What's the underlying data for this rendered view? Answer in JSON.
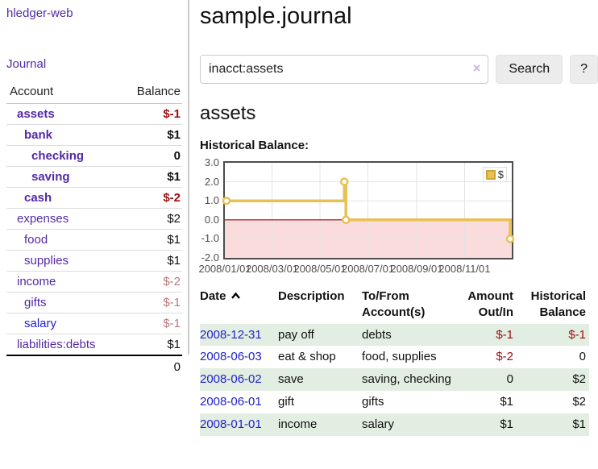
{
  "app": {
    "title": "hledger-web"
  },
  "colors": {
    "link_purple": "#5329a5",
    "link_blue": "#2222cc",
    "negative_strong": "#9e0e0e",
    "negative_soft": "#b97878",
    "row_stripe_green": "#e2eee2",
    "chart_gold": "#e8c155",
    "chart_negative_region": "#fbdcdc",
    "chart_zero_line": "#a40000"
  },
  "sidebar": {
    "journal_label": "Journal",
    "table": {
      "account_header": "Account",
      "balance_header": "Balance",
      "rows": [
        {
          "name": "assets",
          "indent": 1,
          "bold": true,
          "link_color": "purple",
          "balance": "$-1",
          "balance_style": "neg-strong"
        },
        {
          "name": "bank",
          "indent": 2,
          "bold": true,
          "link_color": "purple",
          "balance": "$1",
          "balance_style": "pos"
        },
        {
          "name": "checking",
          "indent": 3,
          "bold": true,
          "link_color": "purple",
          "balance": "0",
          "balance_style": "pos"
        },
        {
          "name": "saving",
          "indent": 3,
          "bold": true,
          "link_color": "purple",
          "balance": "$1",
          "balance_style": "pos"
        },
        {
          "name": "cash",
          "indent": 2,
          "bold": true,
          "link_color": "purple",
          "balance": "$-2",
          "balance_style": "neg-strong"
        },
        {
          "name": "expenses",
          "indent": 1,
          "bold": false,
          "link_color": "purple",
          "balance": "$2",
          "balance_style": "pos"
        },
        {
          "name": "food",
          "indent": 2,
          "bold": false,
          "link_color": "purple",
          "balance": "$1",
          "balance_style": "pos"
        },
        {
          "name": "supplies",
          "indent": 2,
          "bold": false,
          "link_color": "purple",
          "balance": "$1",
          "balance_style": "pos"
        },
        {
          "name": "income",
          "indent": 1,
          "bold": false,
          "link_color": "purple",
          "balance": "$-2",
          "balance_style": "neg-soft"
        },
        {
          "name": "gifts",
          "indent": 2,
          "bold": false,
          "link_color": "purple",
          "balance": "$-1",
          "balance_style": "neg-soft"
        },
        {
          "name": "salary",
          "indent": 2,
          "bold": false,
          "link_color": "blue",
          "balance": "$-1",
          "balance_style": "neg-soft"
        },
        {
          "name": "liabilities:debts",
          "indent": 1,
          "bold": false,
          "link_color": "purple",
          "balance": "$1",
          "balance_style": "pos"
        }
      ],
      "total": "0"
    }
  },
  "main": {
    "title": "sample.journal",
    "search": {
      "value": "inacct:assets",
      "clear_icon": "×",
      "button_label": "Search",
      "help_label": "?"
    },
    "account_heading": "assets",
    "chart_label": "Historical Balance:"
  },
  "chart_data": {
    "type": "line",
    "step": true,
    "title": "Historical Balance",
    "series": [
      {
        "name": "$",
        "color": "#e8c155",
        "points": [
          {
            "x": "2008-01-01",
            "y": 1
          },
          {
            "x": "2008-06-01",
            "y": 2
          },
          {
            "x": "2008-06-03",
            "y": 0
          },
          {
            "x": "2008-12-31",
            "y": -1
          }
        ]
      }
    ],
    "x_range": [
      "2008-01-01",
      "2008-12-31"
    ],
    "ylim": [
      -2,
      3
    ],
    "yticks": [
      "3.0",
      "2.0",
      "1.0",
      "0.0",
      "-1.0",
      "-2.0"
    ],
    "xticks": [
      "2008/01/01",
      "2008/03/01",
      "2008/05/01",
      "2008/07/01",
      "2008/09/01",
      "2008/11/01"
    ],
    "legend": "$",
    "legend_position": "top-right",
    "grid": true,
    "negative_region_shaded": true
  },
  "register": {
    "headers": {
      "date": "Date",
      "description": "Description",
      "accounts": "To/From Account(s)",
      "amount": "Amount Out/In",
      "balance": "Historical Balance"
    },
    "rows": [
      {
        "date": "2008-12-31",
        "description": "pay off",
        "accounts": "debts",
        "amount": "$-1",
        "balance": "$-1"
      },
      {
        "date": "2008-06-03",
        "description": "eat & shop",
        "accounts": "food, supplies",
        "amount": "$-2",
        "balance": "0"
      },
      {
        "date": "2008-06-02",
        "description": "save",
        "accounts": "saving, checking",
        "amount": "0",
        "balance": "$2"
      },
      {
        "date": "2008-06-01",
        "description": "gift",
        "accounts": "gifts",
        "amount": "$1",
        "balance": "$2"
      },
      {
        "date": "2008-01-01",
        "description": "income",
        "accounts": "salary",
        "amount": "$1",
        "balance": "$1"
      }
    ]
  }
}
